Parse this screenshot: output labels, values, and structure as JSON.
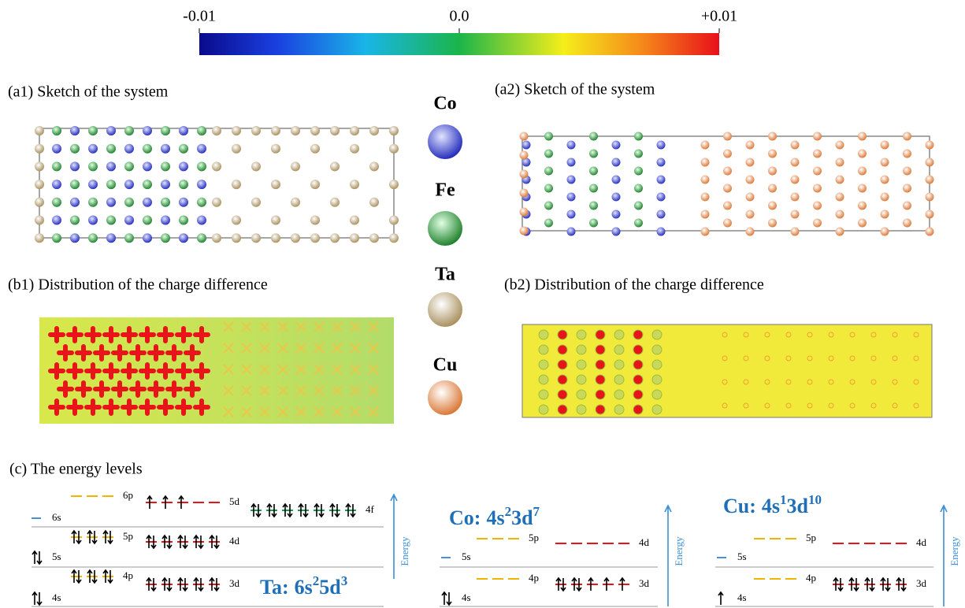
{
  "colorbar": {
    "range": [
      -0.01,
      0.01
    ],
    "ticks": [
      -0.01,
      {
        "value": 0,
        "label": "0.0"
      },
      {
        "value": 0.01,
        "label": "+0.01"
      }
    ]
  },
  "panel_titles": [
    "(a1) Sketch of the system",
    "(a2) Sketch of the system",
    "(b1) Distribution of the charge difference",
    "(b2) Distribution of the charge difference"
  ],
  "legend": [
    "Co",
    "Fe",
    "Ta",
    "Cu"
  ],
  "energy": {
    "title": "(c) The energy levels",
    "axis_label": "Energy",
    "diagrams": [
      {
        "formula": {
          "prefix": "Ta:",
          "terms": [
            {
              "orbital": "6s",
              "count": 2
            },
            {
              "orbital": "5d",
              "count": 3
            }
          ]
        },
        "levels": [
          "6s",
          "6p",
          "5d",
          "4f",
          "5p",
          "4d",
          "5s",
          "4p",
          "3d",
          "4s"
        ]
      },
      {
        "formula": {
          "prefix": "Co:",
          "terms": [
            {
              "orbital": "4s",
              "count": 2
            },
            {
              "orbital": "3d",
              "count": 7
            }
          ]
        },
        "levels": [
          "5p",
          "4d",
          "5s",
          "4p",
          "3d",
          "4s"
        ]
      },
      {
        "formula": {
          "prefix": "Cu:",
          "terms": [
            {
              "orbital": "4s",
              "count": 1
            },
            {
              "orbital": "3d",
              "count": 10
            }
          ]
        },
        "levels": [
          "5p",
          "4d",
          "5s",
          "4p",
          "3d",
          "4s"
        ]
      }
    ]
  }
}
